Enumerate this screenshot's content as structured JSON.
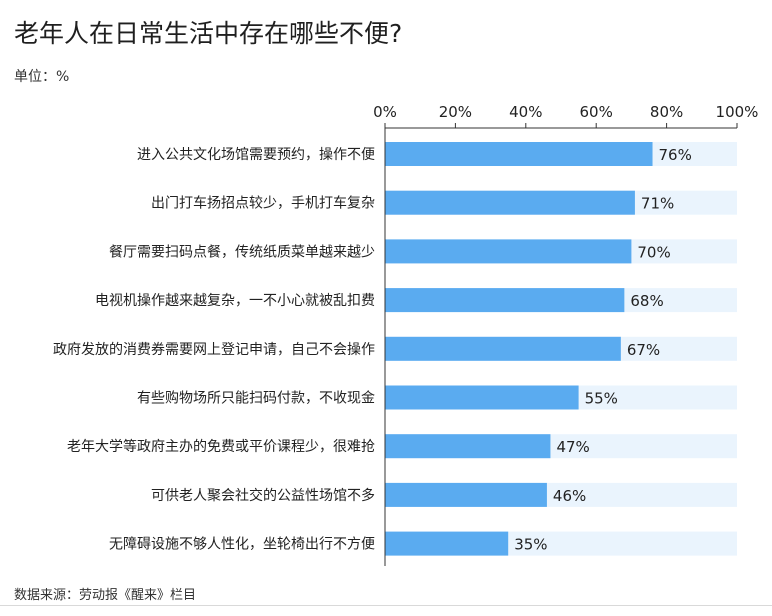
{
  "title": "老年人在日常生活中存在哪些不便?",
  "unit_label": "单位：%",
  "source": "数据来源：劳动报《醒来》栏目",
  "colors": {
    "bar": "#5aabf0",
    "track": "#eaf4fd",
    "text": "#222222",
    "axis": "#333333"
  },
  "chart_data": {
    "type": "bar",
    "orientation": "horizontal",
    "title": "老年人在日常生活中存在哪些不便?",
    "unit": "%",
    "categories": [
      "进入公共文化场馆需要预约，操作不便",
      "出门打车扬招点较少，手机打车复杂",
      "餐厅需要扫码点餐，传统纸质菜单越来越少",
      "电视机操作越来越复杂，一不小心就被乱扣费",
      "政府发放的消费券需要网上登记申请，自己不会操作",
      "有些购物场所只能扫码付款，不收现金",
      "老年大学等政府主办的免费或平价课程少，很难抢",
      "可供老人聚会社交的公益性场馆不多",
      "无障碍设施不够人性化，坐轮椅出行不方便"
    ],
    "values": [
      76,
      71,
      70,
      68,
      67,
      55,
      47,
      46,
      35
    ],
    "value_labels": [
      "76%",
      "71%",
      "70%",
      "68%",
      "67%",
      "55%",
      "47%",
      "46%",
      "35%"
    ],
    "xlim": [
      0,
      100
    ],
    "xticks": [
      0,
      20,
      40,
      60,
      80,
      100
    ],
    "xtick_labels": [
      "0%",
      "20%",
      "40%",
      "60%",
      "80%",
      "100%"
    ],
    "axis_position": "top",
    "grid": false,
    "legend": "none"
  }
}
